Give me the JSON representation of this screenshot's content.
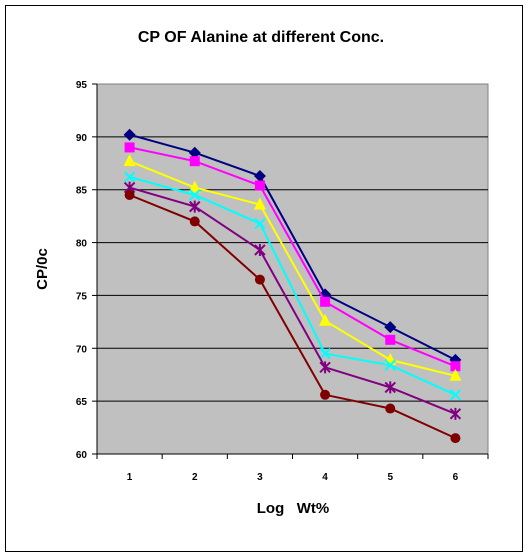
{
  "chart_data": {
    "type": "line",
    "title": "CP OF Alanine at different Conc.",
    "xlabel": "Log   Wt%",
    "ylabel": "CP/0c",
    "categories": [
      "1",
      "2",
      "3",
      "4",
      "5",
      "6"
    ],
    "ylim": [
      60,
      95
    ],
    "yticks": [
      "60",
      "65",
      "70",
      "75",
      "80",
      "85",
      "90",
      "95"
    ],
    "grid": "horizontal",
    "legend": "none",
    "plot_background": "#C0C0C0",
    "series": [
      {
        "values": [
          90.2,
          88.5,
          86.3,
          75.1,
          72.0,
          68.9
        ],
        "color": "#000080",
        "marker": "diamond"
      },
      {
        "values": [
          89.0,
          87.7,
          85.4,
          74.4,
          70.8,
          68.3
        ],
        "color": "#FF00FF",
        "marker": "square"
      },
      {
        "values": [
          87.7,
          85.2,
          83.6,
          72.6,
          68.9,
          67.4
        ],
        "color": "#FFFF00",
        "marker": "triangle"
      },
      {
        "values": [
          86.2,
          84.5,
          81.8,
          69.5,
          68.4,
          65.6
        ],
        "color": "#00FFFF",
        "marker": "x"
      },
      {
        "values": [
          85.2,
          83.4,
          79.3,
          68.2,
          66.3,
          63.8
        ],
        "color": "#800080",
        "marker": "star"
      },
      {
        "values": [
          84.5,
          82.0,
          76.5,
          65.6,
          64.3,
          61.5
        ],
        "color": "#800000",
        "marker": "circle"
      }
    ]
  }
}
